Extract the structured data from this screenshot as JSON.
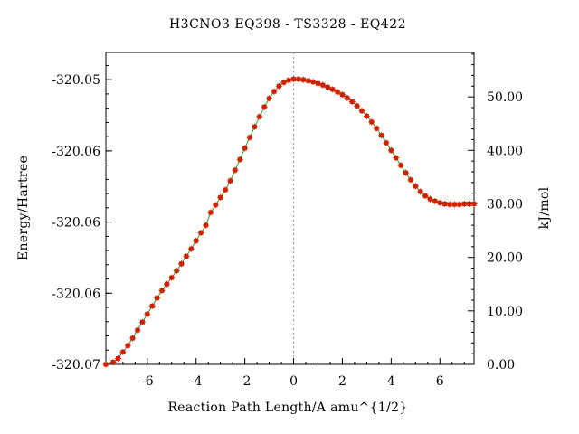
{
  "chart_data": {
    "type": "line",
    "title": "H3CNO3    EQ398 - TS3328 - EQ422",
    "xlabel": "Reaction Path Length/A amu^{1/2}",
    "ylabel_left": "Energy/Hartree",
    "ylabel_right": "kJ/mol",
    "xlim": [
      -7.7,
      7.4
    ],
    "ylim_kjmol": [
      0,
      58.3
    ],
    "x_ticks": [
      -6,
      -4,
      -2,
      0,
      2,
      4,
      6
    ],
    "x_tick_labels": [
      "-6",
      "-4",
      "-2",
      "0",
      "2",
      "4",
      "6"
    ],
    "left_tick_values_kjmol": [
      53.2,
      39.9,
      26.6,
      13.3,
      0.0
    ],
    "left_tick_labels": [
      "-320.05",
      "-320.06",
      "-320.06",
      "-320.06",
      "-320.07"
    ],
    "right_tick_values": [
      0,
      10,
      20,
      30,
      40,
      50
    ],
    "right_tick_labels": [
      "0.00",
      "10.00",
      "20.00",
      "30.00",
      "40.00",
      "50.00"
    ],
    "transition_state_x": 0,
    "colors": {
      "line": "#2ca02c",
      "marker": "#cc2200",
      "axis": "#000000",
      "ts_marker_line": "#999999"
    },
    "series": [
      {
        "points": [
          [
            -7.7,
            0.0
          ],
          [
            -7.4,
            0.4
          ],
          [
            -7.2,
            1.1
          ],
          [
            -7.0,
            2.3
          ],
          [
            -6.8,
            3.5
          ],
          [
            -6.6,
            4.9
          ],
          [
            -6.4,
            6.4
          ],
          [
            -6.2,
            7.9
          ],
          [
            -6.0,
            9.4
          ],
          [
            -5.8,
            10.9
          ],
          [
            -5.6,
            12.4
          ],
          [
            -5.4,
            13.8
          ],
          [
            -5.2,
            15.0
          ],
          [
            -5.0,
            16.2
          ],
          [
            -4.8,
            17.5
          ],
          [
            -4.6,
            18.8
          ],
          [
            -4.4,
            20.2
          ],
          [
            -4.2,
            21.6
          ],
          [
            -4.0,
            23.1
          ],
          [
            -3.8,
            24.6
          ],
          [
            -3.6,
            26.0
          ],
          [
            -3.4,
            28.4
          ],
          [
            -3.2,
            29.8
          ],
          [
            -3.0,
            31.2
          ],
          [
            -2.8,
            32.6
          ],
          [
            -2.6,
            34.3
          ],
          [
            -2.4,
            36.3
          ],
          [
            -2.2,
            38.3
          ],
          [
            -2.0,
            40.4
          ],
          [
            -1.8,
            42.4
          ],
          [
            -1.6,
            44.4
          ],
          [
            -1.4,
            46.3
          ],
          [
            -1.2,
            48.1
          ],
          [
            -1.0,
            49.7
          ],
          [
            -0.8,
            51.0
          ],
          [
            -0.6,
            52.0
          ],
          [
            -0.4,
            52.7
          ],
          [
            -0.2,
            53.1
          ],
          [
            0.0,
            53.3
          ],
          [
            0.2,
            53.3
          ],
          [
            0.4,
            53.2
          ],
          [
            0.6,
            53.0
          ],
          [
            0.8,
            52.8
          ],
          [
            1.0,
            52.5
          ],
          [
            1.2,
            52.2
          ],
          [
            1.4,
            51.8
          ],
          [
            1.6,
            51.4
          ],
          [
            1.8,
            50.9
          ],
          [
            2.0,
            50.4
          ],
          [
            2.2,
            49.8
          ],
          [
            2.4,
            49.1
          ],
          [
            2.6,
            48.3
          ],
          [
            2.8,
            47.4
          ],
          [
            3.0,
            46.4
          ],
          [
            3.2,
            45.3
          ],
          [
            3.4,
            44.1
          ],
          [
            3.6,
            42.8
          ],
          [
            3.8,
            41.4
          ],
          [
            4.0,
            40.0
          ],
          [
            4.2,
            38.6
          ],
          [
            4.4,
            37.2
          ],
          [
            4.6,
            35.8
          ],
          [
            4.8,
            34.5
          ],
          [
            5.0,
            33.3
          ],
          [
            5.2,
            32.3
          ],
          [
            5.4,
            31.5
          ],
          [
            5.6,
            30.9
          ],
          [
            5.8,
            30.5
          ],
          [
            6.0,
            30.2
          ],
          [
            6.2,
            30.0
          ],
          [
            6.4,
            29.9
          ],
          [
            6.6,
            29.9
          ],
          [
            6.8,
            29.9
          ],
          [
            7.0,
            30.0
          ],
          [
            7.2,
            30.0
          ],
          [
            7.4,
            30.0
          ]
        ]
      }
    ]
  }
}
